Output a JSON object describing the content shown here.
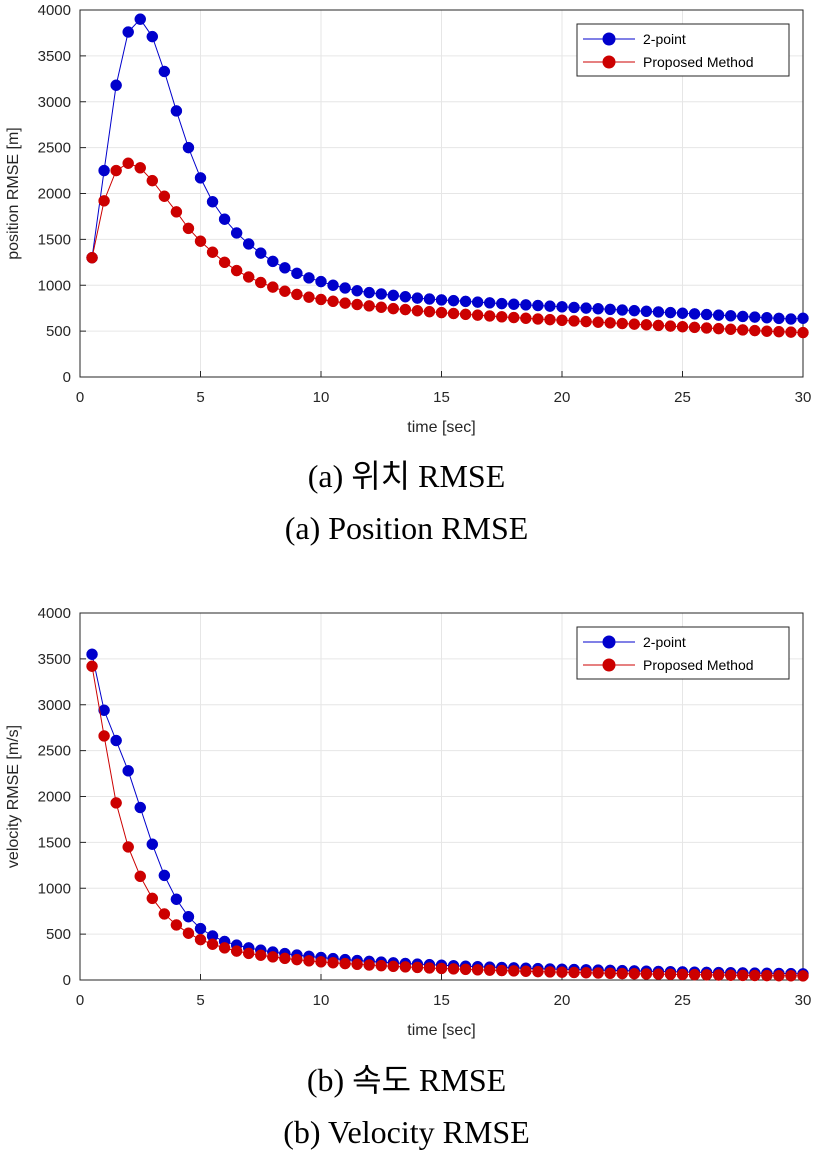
{
  "captions": {
    "a_korean": "(a)  위치  RMSE",
    "a_english": "(a)  Position  RMSE",
    "b_korean": "(b)  속도  RMSE",
    "b_english": "(b)  Velocity  RMSE"
  },
  "colors": {
    "two_point": "#0000cc",
    "proposed": "#cc0000",
    "grid": "#e6e6e6",
    "axis": "#262626"
  },
  "chart_data": [
    {
      "type": "line",
      "title": "",
      "xlabel": "time [sec]",
      "ylabel": "position RMSE [m]",
      "xlim": [
        0,
        30
      ],
      "ylim": [
        0,
        4000
      ],
      "xticks": [
        0,
        5,
        10,
        15,
        20,
        25,
        30
      ],
      "yticks": [
        0,
        500,
        1000,
        1500,
        2000,
        2500,
        3000,
        3500,
        4000
      ],
      "grid": true,
      "legend_position": "top-right",
      "x": [
        0.5,
        1,
        1.5,
        2,
        2.5,
        3,
        3.5,
        4,
        4.5,
        5,
        5.5,
        6,
        6.5,
        7,
        7.5,
        8,
        8.5,
        9,
        9.5,
        10,
        10.5,
        11,
        11.5,
        12,
        12.5,
        13,
        13.5,
        14,
        14.5,
        15,
        15.5,
        16,
        16.5,
        17,
        17.5,
        18,
        18.5,
        19,
        19.5,
        20,
        20.5,
        21,
        21.5,
        22,
        22.5,
        23,
        23.5,
        24,
        24.5,
        25,
        25.5,
        26,
        26.5,
        27,
        27.5,
        28,
        28.5,
        29,
        29.5,
        30
      ],
      "series": [
        {
          "name": "2-point",
          "color": "#0000cc",
          "values": [
            1300,
            2250,
            3180,
            3760,
            3900,
            3710,
            3330,
            2900,
            2500,
            2170,
            1910,
            1720,
            1570,
            1450,
            1350,
            1260,
            1190,
            1130,
            1080,
            1040,
            1000,
            970,
            940,
            920,
            905,
            890,
            875,
            860,
            850,
            840,
            832,
            824,
            816,
            808,
            800,
            793,
            786,
            779,
            772,
            765,
            758,
            751,
            744,
            737,
            730,
            723,
            716,
            709,
            702,
            695,
            688,
            681,
            674,
            667,
            660,
            653,
            646,
            639,
            632,
            640
          ]
        },
        {
          "name": "Proposed Method",
          "color": "#cc0000",
          "values": [
            1300,
            1920,
            2250,
            2330,
            2280,
            2140,
            1970,
            1800,
            1620,
            1480,
            1360,
            1250,
            1160,
            1090,
            1030,
            980,
            935,
            900,
            870,
            845,
            825,
            805,
            790,
            775,
            760,
            745,
            735,
            722,
            712,
            702,
            692,
            683,
            674,
            665,
            656,
            648,
            640,
            632,
            625,
            618,
            611,
            604,
            597,
            590,
            583,
            576,
            569,
            562,
            555,
            548,
            541,
            534,
            527,
            520,
            513,
            506,
            499,
            494,
            489,
            484
          ]
        }
      ]
    },
    {
      "type": "line",
      "title": "",
      "xlabel": "time [sec]",
      "ylabel": "velocity RMSE [m/s]",
      "xlim": [
        0,
        30
      ],
      "ylim": [
        0,
        4000
      ],
      "xticks": [
        0,
        5,
        10,
        15,
        20,
        25,
        30
      ],
      "yticks": [
        0,
        500,
        1000,
        1500,
        2000,
        2500,
        3000,
        3500,
        4000
      ],
      "grid": true,
      "legend_position": "top-right",
      "x": [
        0.5,
        1,
        1.5,
        2,
        2.5,
        3,
        3.5,
        4,
        4.5,
        5,
        5.5,
        6,
        6.5,
        7,
        7.5,
        8,
        8.5,
        9,
        9.5,
        10,
        10.5,
        11,
        11.5,
        12,
        12.5,
        13,
        13.5,
        14,
        14.5,
        15,
        15.5,
        16,
        16.5,
        17,
        17.5,
        18,
        18.5,
        19,
        19.5,
        20,
        20.5,
        21,
        21.5,
        22,
        22.5,
        23,
        23.5,
        24,
        24.5,
        25,
        25.5,
        26,
        26.5,
        27,
        27.5,
        28,
        28.5,
        29,
        29.5,
        30
      ],
      "series": [
        {
          "name": "2-point",
          "color": "#0000cc",
          "values": [
            3550,
            2940,
            2610,
            2280,
            1880,
            1480,
            1140,
            880,
            690,
            560,
            480,
            420,
            380,
            350,
            325,
            305,
            288,
            272,
            258,
            245,
            233,
            222,
            212,
            203,
            195,
            187,
            180,
            173,
            167,
            161,
            155,
            150,
            145,
            140,
            136,
            132,
            128,
            124,
            120,
            117,
            114,
            111,
            108,
            105,
            102,
            99,
            96,
            93,
            90,
            88,
            85,
            83,
            81,
            79,
            77,
            75,
            73,
            71,
            69,
            67
          ]
        },
        {
          "name": "Proposed Method",
          "color": "#cc0000",
          "values": [
            3420,
            2660,
            1930,
            1450,
            1130,
            890,
            720,
            600,
            510,
            440,
            390,
            350,
            315,
            290,
            270,
            252,
            236,
            222,
            209,
            198,
            188,
            179,
            171,
            163,
            156,
            149,
            143,
            137,
            131,
            126,
            121,
            116,
            111,
            107,
            103,
            99,
            95,
            91,
            88,
            85,
            82,
            79,
            76,
            73,
            70,
            68,
            66,
            64,
            62,
            60,
            58,
            56,
            54,
            52,
            50,
            49,
            48,
            47,
            46,
            45
          ]
        }
      ]
    }
  ]
}
